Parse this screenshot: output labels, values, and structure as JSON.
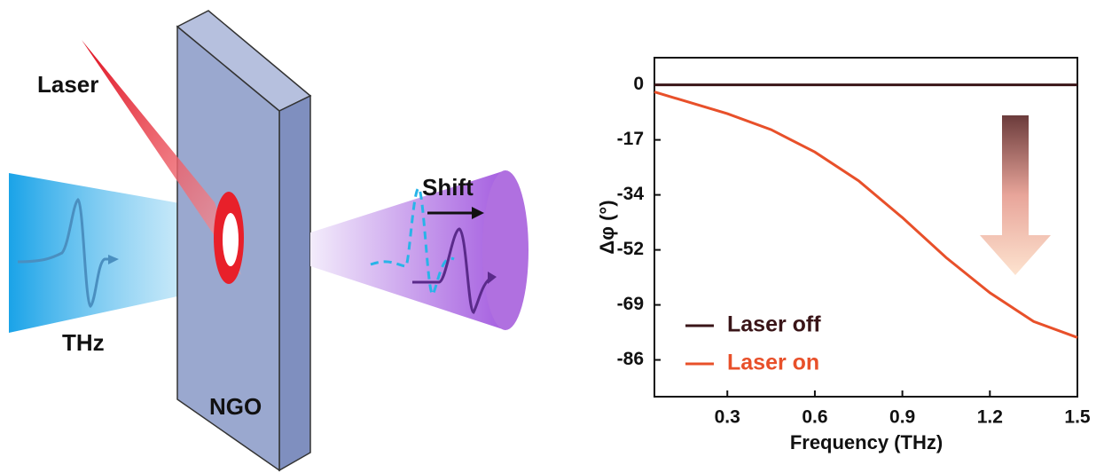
{
  "diagram": {
    "labels": {
      "laser": "Laser",
      "thz": "THz",
      "ngo": "NGO",
      "shift": "Shift"
    }
  },
  "chart_data": {
    "type": "line",
    "x_label": "Frequency (THz)",
    "y_label": "Δφ (°)",
    "xlim": [
      0.05,
      1.5
    ],
    "xticks": [
      0.3,
      0.6,
      0.9,
      1.2,
      1.5
    ],
    "ylim": [
      -97.5,
      8.5
    ],
    "yticks": [
      0,
      {
        "value": -17.2,
        "label": "-17"
      },
      {
        "value": -34.4,
        "label": "-34"
      },
      {
        "value": -51.6,
        "label": "-52"
      },
      {
        "value": -68.8,
        "label": "-69"
      },
      -86
    ],
    "legend_position": "lower left",
    "series": [
      {
        "name": "Laser off",
        "color": "#3a1518",
        "x": [
          0.05,
          1.5
        ],
        "values": [
          0,
          0
        ]
      },
      {
        "name": "Laser on",
        "color": "#e8502a",
        "x": [
          0.05,
          0.3,
          0.45,
          0.6,
          0.75,
          0.9,
          1.05,
          1.2,
          1.35,
          1.5
        ],
        "values": [
          -2.2,
          -9,
          -14,
          -21,
          -30,
          -41.5,
          -54,
          -65,
          -74,
          -79
        ]
      }
    ]
  }
}
